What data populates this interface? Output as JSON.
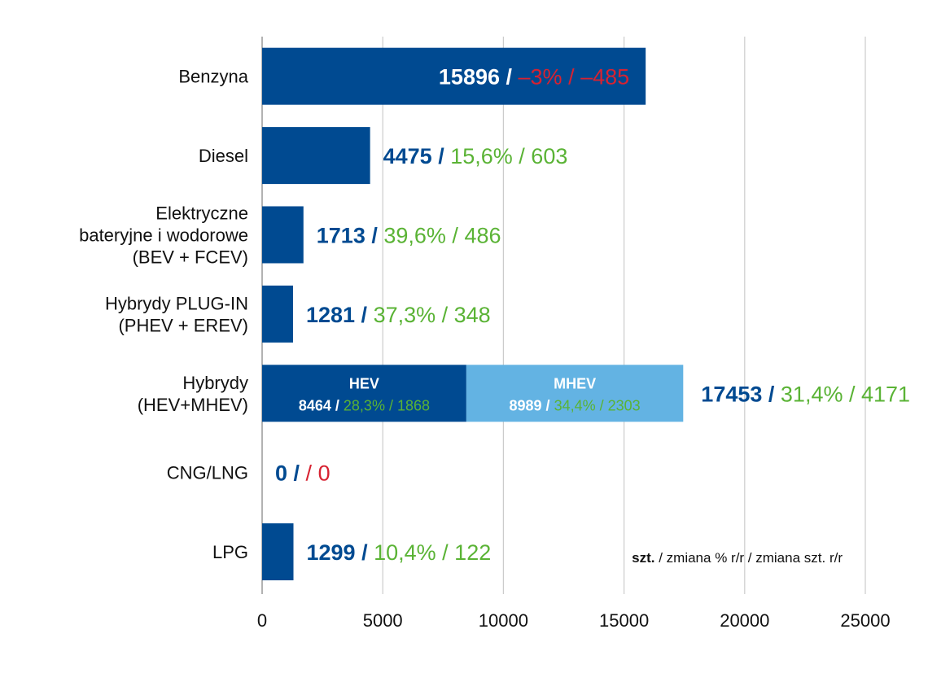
{
  "chart_data": {
    "type": "bar",
    "orientation": "horizontal",
    "xlim": [
      0,
      25000
    ],
    "ticks": [
      "0",
      "5000",
      "10000",
      "15000",
      "20000",
      "25000"
    ],
    "grid": true,
    "legend_text": {
      "bold": "szt.",
      "rest": " / zmiana % r/r / zmiana szt. r/r"
    },
    "colors": {
      "bar": "#004a91",
      "bar_light": "#63b3e3",
      "value": "#004a91",
      "positive": "#5ab335",
      "negative": "#d72231",
      "grid": "#cccccc"
    },
    "categories": [
      {
        "label_lines": [
          "Benzyna"
        ],
        "value": 15896,
        "value_text": "15896",
        "sep": " / ",
        "pct": "–3%",
        "pct_sep": " / ",
        "delta": "–485",
        "trend": "negative",
        "label_inside": true
      },
      {
        "label_lines": [
          "Diesel"
        ],
        "value": 4475,
        "value_text": "4475",
        "sep": " / ",
        "pct": "15,6%",
        "pct_sep": " / ",
        "delta": "603",
        "trend": "positive",
        "label_inside": false
      },
      {
        "label_lines": [
          "Elektryczne",
          "bateryjne i wodorowe",
          "(BEV + FCEV)"
        ],
        "value": 1713,
        "value_text": "1713",
        "sep": " / ",
        "pct": "39,6%",
        "pct_sep": " / ",
        "delta": "486",
        "trend": "positive",
        "label_inside": false
      },
      {
        "label_lines": [
          "Hybrydy PLUG-IN",
          "(PHEV + EREV)"
        ],
        "value": 1281,
        "value_text": "1281",
        "sep": " / ",
        "pct": "37,3%",
        "pct_sep": " / ",
        "delta": "348",
        "trend": "positive",
        "label_inside": false
      },
      {
        "label_lines": [
          "Hybrydy",
          "(HEV+MHEV)"
        ],
        "value": 17453,
        "value_text": "17453",
        "sep": " / ",
        "pct": "31,4%",
        "pct_sep": " / ",
        "delta": "4171",
        "trend": "positive",
        "label_inside": false,
        "segments": [
          {
            "name": "HEV",
            "value": 8464,
            "value_text": "8464",
            "sep": " / ",
            "pct": "28,3%",
            "pct_sep": " / ",
            "delta": "1868",
            "color": "dark"
          },
          {
            "name": "MHEV",
            "value": 8989,
            "value_text": "8989",
            "sep": " / ",
            "pct": "34,4%",
            "pct_sep": " / ",
            "delta": "2303",
            "color": "light"
          }
        ]
      },
      {
        "label_lines": [
          "CNG/LNG"
        ],
        "value": 0,
        "value_text": "0",
        "sep": " / ",
        "pct": "",
        "pct_sep": " / ",
        "delta": "0",
        "trend": "negative",
        "label_inside": false
      },
      {
        "label_lines": [
          "LPG"
        ],
        "value": 1299,
        "value_text": "1299",
        "sep": " / ",
        "pct": "10,4%",
        "pct_sep": " / ",
        "delta": "122",
        "trend": "positive",
        "label_inside": false
      }
    ]
  }
}
